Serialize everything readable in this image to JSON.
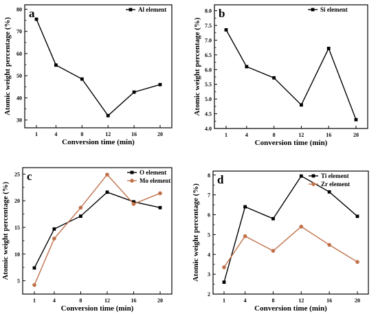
{
  "chart_data": [
    {
      "panel": "a",
      "type": "line",
      "x": [
        1,
        4,
        8,
        12,
        16,
        20
      ],
      "x_tick_labels": [
        "1",
        "4",
        "8",
        "12",
        "16",
        "20"
      ],
      "xlabel": "Conversion time (min)",
      "ylabel": "Atomic weight percentage (%)",
      "ylim": [
        26.5,
        82
      ],
      "y_ticks": [
        30,
        40,
        50,
        60,
        70,
        80
      ],
      "legend_position": "top-right",
      "series": [
        {
          "name": "Al element",
          "color": "#000000",
          "marker": "square",
          "values": [
            75.5,
            54.8,
            48.5,
            32.0,
            42.6,
            46.0
          ]
        }
      ]
    },
    {
      "panel": "b",
      "type": "line",
      "x": [
        1,
        4,
        8,
        12,
        16,
        20
      ],
      "x_tick_labels": [
        "1",
        "4",
        "8",
        "12",
        "16",
        "20"
      ],
      "xlabel": "Conversion time (min)",
      "ylabel": "Atomic weight percentage (%)",
      "ylim": [
        4.0,
        8.2
      ],
      "y_ticks": [
        4.0,
        4.5,
        5.0,
        5.5,
        6.0,
        6.5,
        7.0,
        7.5,
        8.0
      ],
      "y_tick_labels": [
        "4.0",
        "4.5",
        "5.0",
        "5.5",
        "6.0",
        "6.5",
        "7.0",
        "7.5",
        "8.0"
      ],
      "legend_position": "top-right",
      "series": [
        {
          "name": "Si element",
          "color": "#000000",
          "marker": "square",
          "values": [
            7.35,
            6.1,
            5.72,
            4.8,
            6.72,
            4.3
          ]
        }
      ]
    },
    {
      "panel": "c",
      "type": "line",
      "x": [
        1,
        4,
        8,
        12,
        16,
        20
      ],
      "x_tick_labels": [
        "1",
        "4",
        "8",
        "12",
        "16",
        "20"
      ],
      "xlabel": "Conversion time (min)",
      "ylabel": "Atomic weight percentage (%)",
      "ylim": [
        2.5,
        26.2
      ],
      "y_ticks": [
        5,
        10,
        15,
        20,
        25
      ],
      "legend_position": "top-right",
      "series": [
        {
          "name": "O element",
          "color": "#000000",
          "marker": "square",
          "values": [
            7.4,
            14.7,
            17.1,
            21.6,
            19.8,
            18.7
          ]
        },
        {
          "name": "Mo element",
          "color": "#c0714b",
          "marker": "circle",
          "values": [
            4.2,
            12.9,
            18.7,
            24.9,
            19.4,
            21.4
          ]
        }
      ]
    },
    {
      "panel": "d",
      "type": "line",
      "x": [
        1,
        4,
        8,
        12,
        16,
        20
      ],
      "x_tick_labels": [
        "1",
        "4",
        "8",
        "12",
        "16",
        "20"
      ],
      "xlabel": "Conversion time (min)",
      "ylabel": "Atomic weight percentage (%)",
      "ylim": [
        2.0,
        8.2
      ],
      "y_ticks": [
        2,
        3,
        4,
        5,
        6,
        7,
        8
      ],
      "legend_position": "top-right",
      "series": [
        {
          "name": "Ti element",
          "color": "#000000",
          "marker": "square",
          "values": [
            2.6,
            6.4,
            5.8,
            7.95,
            7.15,
            5.92
          ]
        },
        {
          "name": "Zr element",
          "color": "#c0714b",
          "marker": "circle",
          "values": [
            3.35,
            4.92,
            4.18,
            5.4,
            4.48,
            3.62
          ]
        }
      ]
    }
  ]
}
